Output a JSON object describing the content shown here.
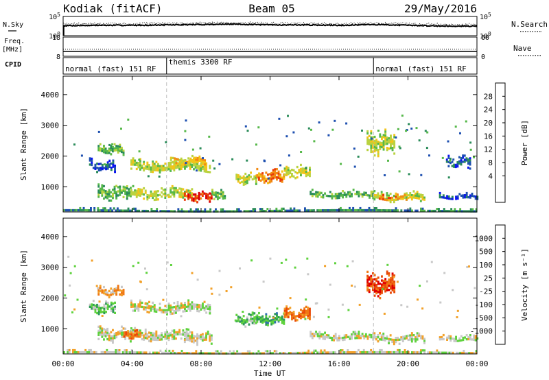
{
  "header": {
    "station": "Kodiak (fitACF)",
    "beam": "Beam 05",
    "date": "29/May/2016"
  },
  "side_labels": {
    "nsky": "N.Sky",
    "freq": "Freq.",
    "freq_unit": "[MHz]",
    "cpid": "CPID",
    "nsearch": "N.Search",
    "nave": "Nave"
  },
  "chart_data": [
    {
      "type": "line",
      "panel": "noise",
      "series": [
        {
          "name": "N.Sky",
          "style": "solid"
        },
        {
          "name": "N.Search",
          "style": "dotted"
        }
      ],
      "x_hours": [
        0,
        2,
        4,
        6,
        8,
        10,
        12,
        14,
        16,
        18,
        20,
        22,
        24
      ],
      "y_log10": [
        2.6,
        2.7,
        2.7,
        2.8,
        2.9,
        3.0,
        2.8,
        2.8,
        2.7,
        2.9,
        2.7,
        2.5,
        2.5
      ],
      "left_ticks": [
        "10^5",
        "10^0"
      ],
      "right_ticks": [
        "10^5",
        "10^0"
      ],
      "left_tick_values": [
        5,
        0
      ],
      "right_tick_values": [
        5,
        0
      ],
      "ylim": [
        0,
        5
      ]
    },
    {
      "type": "line",
      "panel": "freq_nave",
      "series": [
        {
          "name": "Freq.",
          "value": 10.5
        },
        {
          "name": "Nave",
          "value": 22
        }
      ],
      "left_ticks": [
        "18",
        "8"
      ],
      "left_tick_values": [
        18,
        8
      ],
      "left_ylim": [
        8,
        18
      ],
      "right_ticks": [
        "60",
        "0"
      ],
      "right_tick_values": [
        60,
        0
      ],
      "right_ylim": [
        0,
        60
      ]
    },
    {
      "type": "table",
      "panel": "cpid",
      "segments": [
        {
          "start": 0,
          "end": 6,
          "label": "normal (fast) 151 RF"
        },
        {
          "start": 6,
          "end": 18,
          "label": "themis 3300 RF"
        },
        {
          "start": 18,
          "end": 24,
          "label": "normal (fast) 151 RF"
        }
      ]
    },
    {
      "type": "heatmap",
      "panel": "power",
      "ylabel": "Slant Range [km]",
      "y_ticks": [
        1000,
        2000,
        3000,
        4000
      ],
      "ylim": [
        180,
        4600
      ],
      "colorbar_label": "Power [dB]",
      "colorbar_ticks": [
        "28",
        "24",
        "20",
        "16",
        "12",
        "8",
        "4"
      ],
      "colors": [
        "#0a14f0",
        "#1e50b0",
        "#2b8c5a",
        "#56b84a",
        "#b9d240",
        "#f2c419",
        "#f28b14",
        "#e83c0a",
        "#d9000a"
      ],
      "bands": [
        {
          "start": 2.0,
          "end": 3.9,
          "r_lo": 640,
          "r_hi": 1050,
          "level": 3
        },
        {
          "start": 3.9,
          "end": 7.5,
          "r_lo": 620,
          "r_hi": 1000,
          "level": 4
        },
        {
          "start": 7.0,
          "end": 8.6,
          "r_lo": 560,
          "r_hi": 900,
          "level": 7
        },
        {
          "start": 8.6,
          "end": 9.4,
          "r_lo": 600,
          "r_hi": 950,
          "level": 3
        },
        {
          "start": 3.9,
          "end": 8.5,
          "r_lo": 1500,
          "r_hi": 1900,
          "level": 4
        },
        {
          "start": 6.2,
          "end": 8.2,
          "r_lo": 1700,
          "r_hi": 2000,
          "level": 5
        },
        {
          "start": 2.0,
          "end": 3.5,
          "r_lo": 2050,
          "r_hi": 2380,
          "level": 3
        },
        {
          "start": 1.5,
          "end": 3.0,
          "r_lo": 1500,
          "r_hi": 1900,
          "level": 1
        },
        {
          "start": 10.0,
          "end": 11.2,
          "r_lo": 1100,
          "r_hi": 1500,
          "level": 4
        },
        {
          "start": 11.2,
          "end": 12.8,
          "r_lo": 1150,
          "r_hi": 1550,
          "level": 6
        },
        {
          "start": 12.8,
          "end": 14.3,
          "r_lo": 1300,
          "r_hi": 1700,
          "level": 4
        },
        {
          "start": 14.3,
          "end": 18.0,
          "r_lo": 650,
          "r_hi": 900,
          "level": 3
        },
        {
          "start": 18.0,
          "end": 21.0,
          "r_lo": 550,
          "r_hi": 850,
          "level": 4
        },
        {
          "start": 18.2,
          "end": 20.0,
          "r_lo": 580,
          "r_hi": 760,
          "level": 6
        },
        {
          "start": 17.6,
          "end": 19.2,
          "r_lo": 2100,
          "r_hi": 2800,
          "level": 4
        },
        {
          "start": 21.8,
          "end": 24.0,
          "r_lo": 600,
          "r_hi": 800,
          "level": 1
        },
        {
          "start": 22.2,
          "end": 23.6,
          "r_lo": 1650,
          "r_hi": 2000,
          "level": 1
        },
        {
          "start": 0.0,
          "end": 24.0,
          "r_lo": 190,
          "r_hi": 320,
          "level": 2
        }
      ]
    },
    {
      "type": "heatmap",
      "panel": "velocity",
      "ylabel": "Slant Range [km]",
      "y_ticks": [
        1000,
        2000,
        3000,
        4000
      ],
      "ylim": [
        180,
        4600
      ],
      "colorbar_label": "Velocity [m s⁻¹]",
      "colorbar_ticks": [
        "1000",
        "500",
        "100",
        "25",
        "-25",
        "-100",
        "-500",
        "-1000"
      ],
      "colors": [
        "#1e3cc8",
        "#2f6fb0",
        "#2e9a58",
        "#5fd23e",
        "#c8c8c8",
        "#f2a12a",
        "#f07814",
        "#e84a0a",
        "#e00000"
      ],
      "bands": [
        {
          "start": 2.0,
          "end": 3.9,
          "r_lo": 640,
          "r_hi": 1050,
          "level": 4
        },
        {
          "start": 3.9,
          "end": 7.5,
          "r_lo": 620,
          "r_hi": 1000,
          "level": 4
        },
        {
          "start": 7.0,
          "end": 8.6,
          "r_lo": 560,
          "r_hi": 900,
          "level": 4
        },
        {
          "start": 3.5,
          "end": 4.5,
          "r_lo": 700,
          "r_hi": 950,
          "level": 6
        },
        {
          "start": 3.9,
          "end": 8.5,
          "r_lo": 1500,
          "r_hi": 1900,
          "level": 4
        },
        {
          "start": 2.0,
          "end": 3.5,
          "r_lo": 2050,
          "r_hi": 2380,
          "level": 5
        },
        {
          "start": 1.5,
          "end": 3.0,
          "r_lo": 1500,
          "r_hi": 1900,
          "level": 3
        },
        {
          "start": 10.0,
          "end": 11.2,
          "r_lo": 1100,
          "r_hi": 1500,
          "level": 3
        },
        {
          "start": 11.2,
          "end": 12.8,
          "r_lo": 1150,
          "r_hi": 1550,
          "level": 2
        },
        {
          "start": 12.8,
          "end": 14.3,
          "r_lo": 1300,
          "r_hi": 1700,
          "level": 6
        },
        {
          "start": 14.3,
          "end": 18.0,
          "r_lo": 650,
          "r_hi": 900,
          "level": 4
        },
        {
          "start": 18.0,
          "end": 21.0,
          "r_lo": 550,
          "r_hi": 850,
          "level": 4
        },
        {
          "start": 17.6,
          "end": 19.2,
          "r_lo": 2100,
          "r_hi": 2800,
          "level": 7
        },
        {
          "start": 21.8,
          "end": 24.0,
          "r_lo": 600,
          "r_hi": 800,
          "level": 4
        },
        {
          "start": 0.0,
          "end": 24.0,
          "r_lo": 190,
          "r_hi": 320,
          "level": 4
        }
      ]
    }
  ],
  "time_axis": {
    "label": "Time UT",
    "ticks": [
      "00:00",
      "04:00",
      "08:00",
      "12:00",
      "16:00",
      "20:00",
      "00:00"
    ],
    "tick_hours": [
      0,
      4,
      8,
      12,
      16,
      20,
      24
    ],
    "range_hours": [
      0,
      24
    ]
  }
}
